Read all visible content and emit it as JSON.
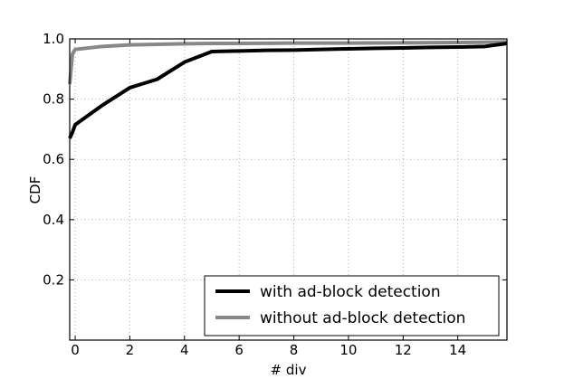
{
  "chart_data": {
    "type": "line",
    "title": "",
    "xlabel": "# div",
    "ylabel": "CDF",
    "xlim": [
      -0.2,
      15.8
    ],
    "ylim": [
      0.0,
      1.0
    ],
    "x_ticks": [
      0,
      2,
      4,
      6,
      8,
      10,
      12,
      14
    ],
    "y_ticks": [
      0.2,
      0.4,
      0.6,
      0.8,
      1.0
    ],
    "x_tick_labels": [
      "0",
      "2",
      "4",
      "6",
      "8",
      "10",
      "12",
      "14"
    ],
    "y_tick_labels": [
      "0.2",
      "0.4",
      "0.6",
      "0.8",
      "1.0"
    ],
    "grid": true,
    "legend_position": "bottom-right",
    "series": [
      {
        "name": "with ad-block detection",
        "color": "#000000",
        "x": [
          -0.2,
          -0.1,
          0,
          1,
          2,
          3,
          4,
          5,
          6,
          7,
          8,
          9,
          10,
          11,
          12,
          13,
          14,
          15,
          15.8
        ],
        "y": [
          0.67,
          0.69,
          0.715,
          0.78,
          0.838,
          0.866,
          0.923,
          0.958,
          0.96,
          0.962,
          0.963,
          0.965,
          0.967,
          0.969,
          0.97,
          0.972,
          0.973,
          0.975,
          0.985
        ]
      },
      {
        "name": "without ad-block detection",
        "color": "#888888",
        "x": [
          -0.2,
          -0.1,
          0,
          1,
          2,
          3,
          4,
          5,
          6,
          8,
          10,
          12,
          14,
          15.8
        ],
        "y": [
          0.85,
          0.95,
          0.965,
          0.975,
          0.98,
          0.982,
          0.984,
          0.985,
          0.985,
          0.986,
          0.986,
          0.987,
          0.988,
          0.99
        ]
      }
    ]
  }
}
